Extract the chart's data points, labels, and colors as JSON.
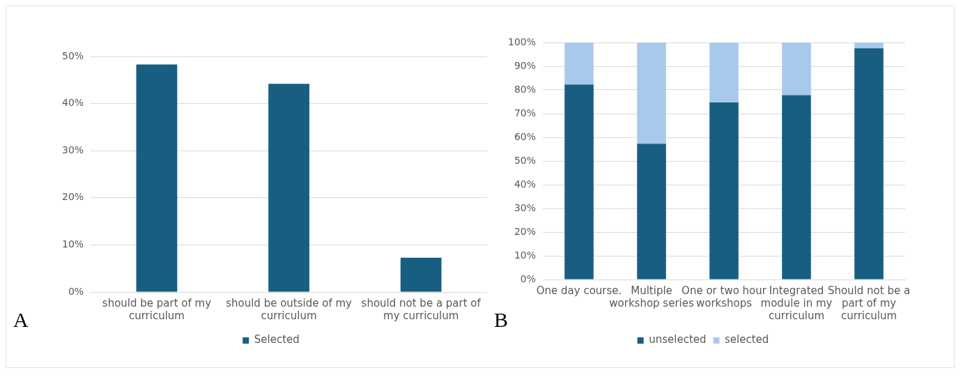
{
  "chart_data": [
    {
      "type": "bar",
      "categories": [
        "should be part of my curriculum",
        "should be outside of my curriculum",
        "should not be a part of my curriculum"
      ],
      "series": [
        {
          "name": "Selected",
          "color": "#175e81",
          "values": [
            48.3,
            44.2,
            7.3
          ]
        }
      ],
      "ylim": [
        0,
        50
      ],
      "yticks": [
        {
          "value": 0,
          "label": "0%"
        },
        {
          "value": 10,
          "label": "10%"
        },
        {
          "value": 20,
          "label": "20%"
        },
        {
          "value": 30,
          "label": "30%"
        },
        {
          "value": 40,
          "label": "40%"
        },
        {
          "value": 50,
          "label": "50%"
        }
      ],
      "grid": "y",
      "legend": "bottom",
      "annotations": [
        "A"
      ]
    },
    {
      "type": "bar",
      "stacked": true,
      "categories": [
        "One day course.",
        "Multiple workshop series",
        "One or two hour workshops",
        "Integrated module in my curriculum",
        "Should not be a part of my curriculum"
      ],
      "series": [
        {
          "name": "unselected",
          "color": "#175e81",
          "values": [
            82.3,
            57.3,
            74.7,
            77.8,
            97.6
          ]
        },
        {
          "name": "selected",
          "color": "#a9c9ec",
          "values": [
            17.7,
            42.7,
            25.3,
            22.2,
            2.4
          ]
        }
      ],
      "ylim": [
        0,
        100
      ],
      "yticks": [
        {
          "value": 0,
          "label": "0%"
        },
        {
          "value": 10,
          "label": "10%"
        },
        {
          "value": 20,
          "label": "20%"
        },
        {
          "value": 30,
          "label": "30%"
        },
        {
          "value": 40,
          "label": "40%"
        },
        {
          "value": 50,
          "label": "50%"
        },
        {
          "value": 60,
          "label": "60%"
        },
        {
          "value": 70,
          "label": "70%"
        },
        {
          "value": 80,
          "label": "80%"
        },
        {
          "value": 90,
          "label": "90%"
        },
        {
          "value": 100,
          "label": "100%"
        }
      ],
      "grid": "y",
      "legend": "bottom",
      "annotations": [
        "B"
      ]
    }
  ]
}
